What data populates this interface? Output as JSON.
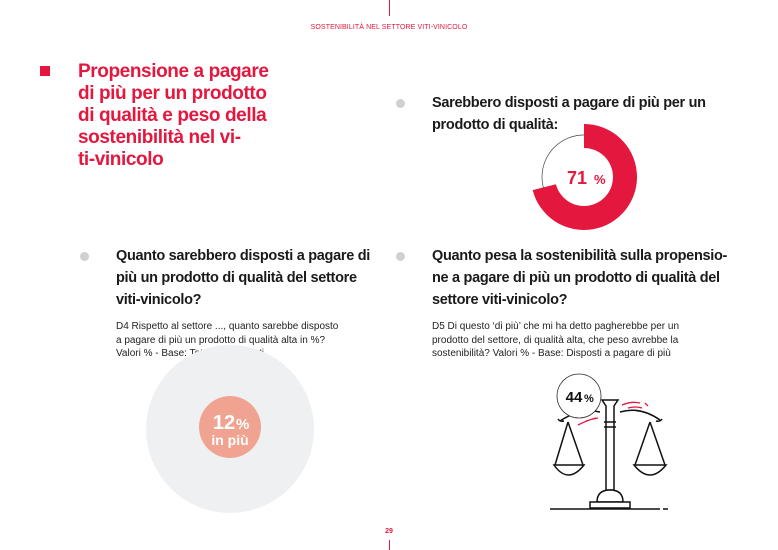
{
  "header": {
    "title": "SOSTENIBILITÀ NEL SETTORE VITI-VINICOLO"
  },
  "main_title": "Propensione a pagare di più per un prodotto di qualità e peso della sostenibilità nel vi-ti-vinicolo",
  "main_title_lines": [
    "Propensione a pagare",
    "di più per un prodotto",
    "di qualità e peso della",
    "sostenibilità nel vi-",
    "ti-vinicolo"
  ],
  "section1": {
    "question_lines": [
      "Sarebbero disposti a pagare di più per un",
      "prodotto di qualità:"
    ],
    "value": 71,
    "label_number": "71",
    "label_unit": "%"
  },
  "section2": {
    "question_lines": [
      "Quanto sarebbero disposti a pagare di",
      "più un prodotto di qualità del settore",
      "viti-vinicolo?"
    ],
    "description_lines": [
      "D4 Rispetto al settore ..., quanto sarebbe disposto",
      "a pagare di più un prodotto di qualità alta in %?",
      "Valori % - Base: Totale intervistati"
    ],
    "value_number": "12",
    "value_unit": "%",
    "value_suffix": "in più"
  },
  "section3": {
    "question_lines": [
      "Quanto pesa la sostenibilità sulla propensio-",
      "ne a pagare di più un prodotto di qualità del",
      "settore viti-vinicolo?"
    ],
    "description_lines": [
      "D5 Di questo ‘di più’ che mi ha detto pagherebbe per un",
      "prodotto del settore, di qualità alta, che peso avrebbe la",
      "sostenibilità? Valori % - Base: Disposti a pagare di più"
    ],
    "value_number": "44",
    "value_unit": "%",
    "icon": "balance-scale-icon"
  },
  "page_number": "29",
  "colors": {
    "accent": "#e4173e",
    "salmon": "#f0a390",
    "light_grey": "#eef0f2"
  }
}
